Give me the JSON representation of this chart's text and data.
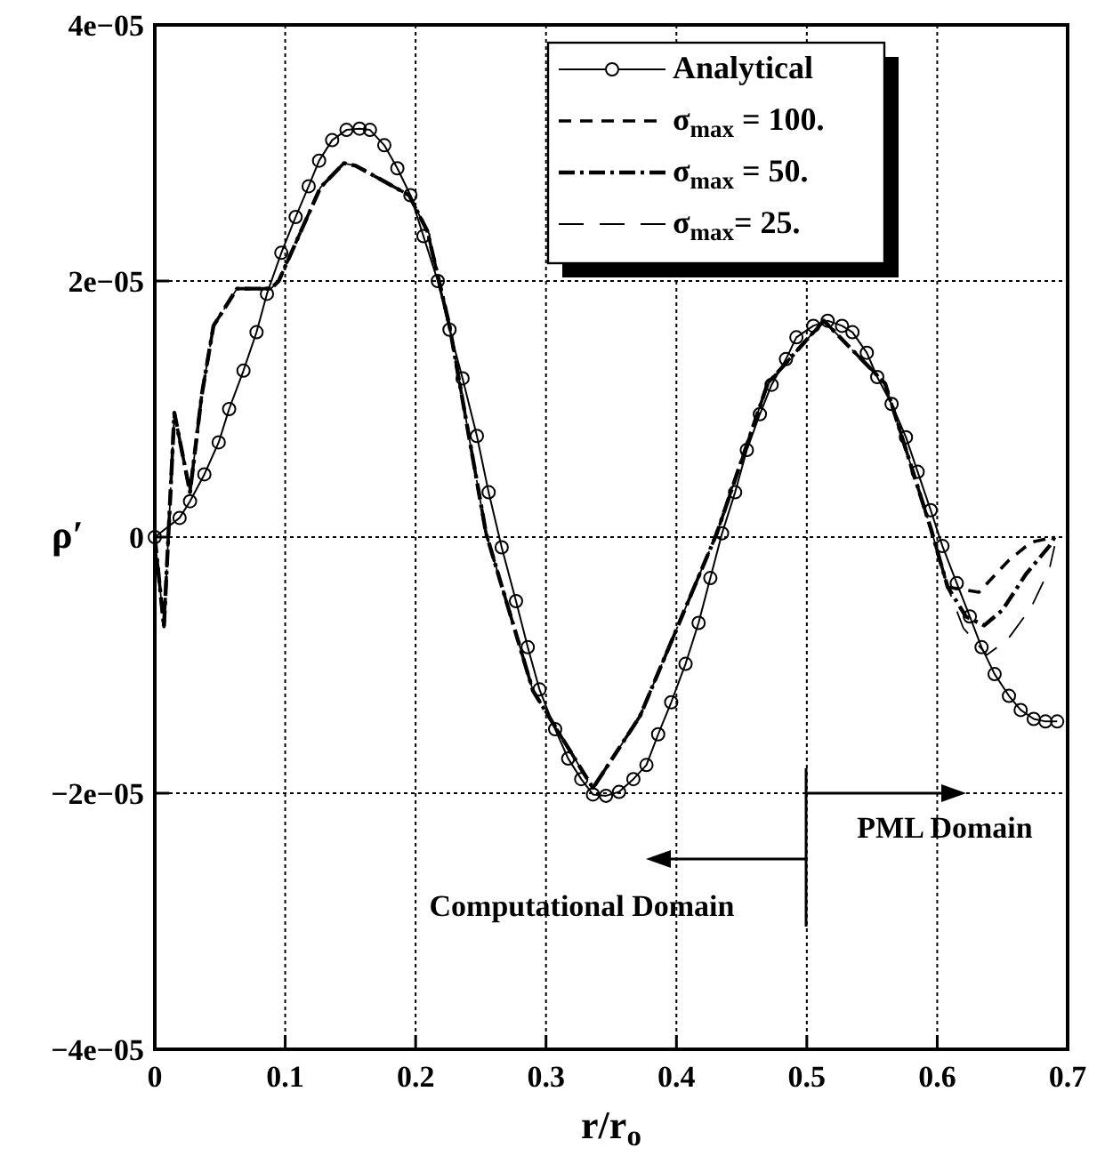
{
  "chart_data": {
    "type": "line",
    "xlabel": "r/r$_{o}$",
    "ylabel": "ρ′",
    "xlim": [
      0,
      0.7
    ],
    "ylim": [
      -4e-05,
      4e-05
    ],
    "xticks": [
      0,
      0.1,
      0.2,
      0.3,
      0.4,
      0.5,
      0.6,
      0.7
    ],
    "yticks": [
      {
        "value": -4e-05,
        "label": "−4e−05"
      },
      {
        "value": -2e-05,
        "label": "−2e−05"
      },
      0,
      {
        "value": 2e-05,
        "label": "2e−05"
      },
      {
        "value": 4e-05,
        "label": "4e−05"
      }
    ],
    "grid": true,
    "legend": "top right",
    "annotations": [
      "PML Domain",
      "Computational Domain"
    ],
    "series": [
      {
        "name": "Analytical",
        "color": "#000000",
        "marker": "circle",
        "line_style": "solid",
        "x": [
          0,
          0.019,
          0.027,
          0.038,
          0.049,
          0.057,
          0.068,
          0.078,
          0.086,
          0.097,
          0.108,
          0.118,
          0.126,
          0.136,
          0.147,
          0.157,
          0.165,
          0.176,
          0.186,
          0.196,
          0.206,
          0.217,
          0.226,
          0.236,
          0.247,
          0.256,
          0.266,
          0.277,
          0.286,
          0.295,
          0.307,
          0.317,
          0.327,
          0.336,
          0.346,
          0.356,
          0.367,
          0.377,
          0.386,
          0.396,
          0.407,
          0.417,
          0.426,
          0.435,
          0.445,
          0.454,
          0.464,
          0.473,
          0.484,
          0.492,
          0.505,
          0.516,
          0.527,
          0.535,
          0.546,
          0.554,
          0.565,
          0.576,
          0.585,
          0.595,
          0.604,
          0.615,
          0.625,
          0.634,
          0.644,
          0.655,
          0.664,
          0.674,
          0.683,
          0.692
        ],
        "values": [
          0,
          1.5e-06,
          2.8e-06,
          4.9e-06,
          7.4e-06,
          1e-05,
          1.3e-05,
          1.6e-05,
          1.9e-05,
          2.22e-05,
          2.5e-05,
          2.74e-05,
          2.94e-05,
          3.1e-05,
          3.18e-05,
          3.19e-05,
          3.18e-05,
          3.06e-05,
          2.88e-05,
          2.67e-05,
          2.35e-05,
          2e-05,
          1.62e-05,
          1.24e-05,
          7.9e-06,
          3.5e-06,
          -8e-07,
          -5e-06,
          -8.6e-06,
          -1.19e-05,
          -1.5e-05,
          -1.73e-05,
          -1.89e-05,
          -2.01e-05,
          -2.02e-05,
          -1.99e-05,
          -1.89e-05,
          -1.78e-05,
          -1.54e-05,
          -1.29e-05,
          -9.9e-06,
          -6.7e-06,
          -3.2e-06,
          3e-07,
          3.5e-06,
          6.8e-06,
          9.6e-06,
          1.19e-05,
          1.39e-05,
          1.56e-05,
          1.65e-05,
          1.69e-05,
          1.65e-05,
          1.6e-05,
          1.44e-05,
          1.25e-05,
          1.04e-05,
          7.8e-06,
          5.1e-06,
          2.1e-06,
          -7e-07,
          -3.6e-06,
          -6.2e-06,
          -8.6e-06,
          -1.07e-05,
          -1.24e-05,
          -1.35e-05,
          -1.42e-05,
          -1.44e-05,
          -1.44e-05
        ]
      },
      {
        "name": "σ$_{max}$ = 100.",
        "color": "#000000",
        "marker": "none",
        "line_style": "dashed",
        "x": [
          0,
          0.007,
          0.015,
          0.027,
          0.036,
          0.045,
          0.063,
          0.089,
          0.095,
          0.127,
          0.145,
          0.154,
          0.172,
          0.195,
          0.209,
          0.226,
          0.254,
          0.29,
          0.336,
          0.372,
          0.431,
          0.47,
          0.513,
          0.56,
          0.595,
          0.608,
          0.632,
          0.655,
          0.672,
          0.69
        ],
        "values": [
          0,
          -7e-06,
          9.7e-06,
          3.5e-06,
          1.11e-05,
          1.65e-05,
          1.94e-05,
          1.94e-05,
          2e-05,
          2.73e-05,
          2.92e-05,
          2.9e-05,
          2.8e-05,
          2.67e-05,
          2.39e-05,
          1.65e-05,
          3e-07,
          -1.2e-05,
          -1.96e-05,
          -1.4e-05,
          3e-07,
          1.2e-05,
          1.69e-05,
          1.2e-05,
          7e-07,
          -3.9e-06,
          -4.3e-06,
          -1.8e-06,
          -4e-07,
          0
        ]
      },
      {
        "name": "σ$_{max}$ = 50.",
        "color": "#000000",
        "marker": "none",
        "line_style": "dashdot",
        "x": [
          0,
          0.007,
          0.015,
          0.027,
          0.036,
          0.045,
          0.063,
          0.089,
          0.095,
          0.127,
          0.145,
          0.154,
          0.172,
          0.195,
          0.209,
          0.226,
          0.254,
          0.29,
          0.336,
          0.372,
          0.431,
          0.47,
          0.513,
          0.56,
          0.595,
          0.608,
          0.622,
          0.636,
          0.65,
          0.668,
          0.686,
          0.69
        ],
        "values": [
          0,
          -7e-06,
          9.7e-06,
          3.5e-06,
          1.11e-05,
          1.65e-05,
          1.94e-05,
          1.94e-05,
          2e-05,
          2.73e-05,
          2.92e-05,
          2.9e-05,
          2.8e-05,
          2.67e-05,
          2.39e-05,
          1.65e-05,
          3e-07,
          -1.2e-05,
          -1.96e-05,
          -1.4e-05,
          3e-07,
          1.2e-05,
          1.69e-05,
          1.2e-05,
          7e-07,
          -3.9e-06,
          -6.2e-06,
          -6.9e-06,
          -5.7e-06,
          -2.9e-06,
          -7e-07,
          0
        ]
      },
      {
        "name": "σ$_{max}$= 25.",
        "color": "#000000",
        "marker": "none",
        "line_style": "longdashed",
        "x": [
          0,
          0.007,
          0.015,
          0.027,
          0.036,
          0.045,
          0.063,
          0.089,
          0.095,
          0.127,
          0.145,
          0.154,
          0.172,
          0.195,
          0.209,
          0.226,
          0.254,
          0.29,
          0.336,
          0.372,
          0.431,
          0.47,
          0.513,
          0.56,
          0.595,
          0.608,
          0.62,
          0.638,
          0.654,
          0.672,
          0.686,
          0.69
        ],
        "values": [
          0,
          -7e-06,
          9.7e-06,
          3.5e-06,
          1.11e-05,
          1.65e-05,
          1.94e-05,
          1.94e-05,
          2e-05,
          2.73e-05,
          2.92e-05,
          2.9e-05,
          2.8e-05,
          2.67e-05,
          2.39e-05,
          1.65e-05,
          3e-07,
          -1.2e-05,
          -1.96e-05,
          -1.4e-05,
          3e-07,
          1.2e-05,
          1.69e-05,
          1.2e-05,
          7e-07,
          -3.9e-06,
          -7.1e-06,
          -9.2e-06,
          -8e-06,
          -5.5e-06,
          -2.5e-06,
          -7e-07
        ]
      }
    ]
  }
}
